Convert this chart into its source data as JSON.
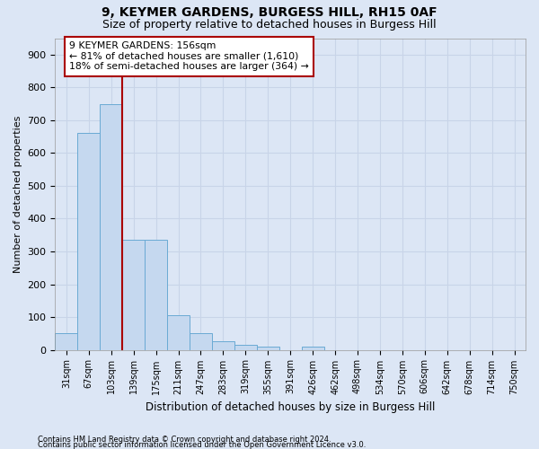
{
  "title": "9, KEYMER GARDENS, BURGESS HILL, RH15 0AF",
  "subtitle": "Size of property relative to detached houses in Burgess Hill",
  "xlabel": "Distribution of detached houses by size in Burgess Hill",
  "ylabel": "Number of detached properties",
  "footer1": "Contains HM Land Registry data © Crown copyright and database right 2024.",
  "footer2": "Contains public sector information licensed under the Open Government Licence v3.0.",
  "bar_labels": [
    "31sqm",
    "67sqm",
    "103sqm",
    "139sqm",
    "175sqm",
    "211sqm",
    "247sqm",
    "283sqm",
    "319sqm",
    "355sqm",
    "391sqm",
    "426sqm",
    "462sqm",
    "498sqm",
    "534sqm",
    "570sqm",
    "606sqm",
    "642sqm",
    "678sqm",
    "714sqm",
    "750sqm"
  ],
  "bar_values": [
    50,
    660,
    750,
    335,
    335,
    105,
    50,
    25,
    15,
    10,
    0,
    10,
    0,
    0,
    0,
    0,
    0,
    0,
    0,
    0,
    0
  ],
  "bar_color": "#c5d8ef",
  "bar_edge_color": "#6aaad4",
  "vline_x": 2.5,
  "vline_color": "#aa0000",
  "annotation_text": "9 KEYMER GARDENS: 156sqm\n← 81% of detached houses are smaller (1,610)\n18% of semi-detached houses are larger (364) →",
  "annotation_box_color": "white",
  "annotation_box_edge": "#aa0000",
  "ylim": [
    0,
    950
  ],
  "yticks": [
    0,
    100,
    200,
    300,
    400,
    500,
    600,
    700,
    800,
    900
  ],
  "grid_color": "#c8d4e8",
  "background_color": "#dce6f5",
  "axes_bg_color": "#dce6f5",
  "title_fontsize": 10,
  "subtitle_fontsize": 9
}
